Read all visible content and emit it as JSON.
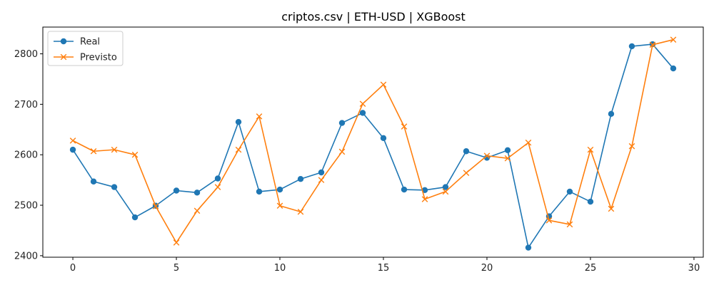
{
  "chart_data": {
    "type": "line",
    "title": "criptos.csv | ETH-USD | XGBoost",
    "xlabel": "",
    "ylabel": "",
    "xlim": [
      -1.45,
      30.45
    ],
    "ylim": [
      2397,
      2853
    ],
    "xticks": [
      0,
      5,
      10,
      15,
      20,
      25,
      30
    ],
    "yticks": [
      2400,
      2500,
      2600,
      2700,
      2800
    ],
    "grid": false,
    "legend_position": "top-left",
    "x": [
      0,
      1,
      2,
      3,
      4,
      5,
      6,
      7,
      8,
      9,
      10,
      11,
      12,
      13,
      14,
      15,
      16,
      17,
      18,
      19,
      20,
      21,
      22,
      23,
      24,
      25,
      26,
      27,
      28,
      29
    ],
    "series": [
      {
        "name": "Real",
        "color": "#1f77b4",
        "marker": "circle",
        "values": [
          2610,
          2547,
          2536,
          2476,
          2499,
          2529,
          2525,
          2553,
          2665,
          2527,
          2531,
          2552,
          2565,
          2663,
          2683,
          2633,
          2531,
          2530,
          2536,
          2607,
          2594,
          2609,
          2416,
          2478,
          2527,
          2507,
          2681,
          2815,
          2819,
          2771
        ]
      },
      {
        "name": "Previsto",
        "color": "#ff7f0e",
        "marker": "x",
        "values": [
          2628,
          2607,
          2610,
          2600,
          2498,
          2426,
          2489,
          2536,
          2610,
          2676,
          2499,
          2487,
          2550,
          2606,
          2701,
          2739,
          2656,
          2512,
          2527,
          2564,
          2598,
          2593,
          2624,
          2470,
          2462,
          2610,
          2493,
          2617,
          2818,
          2828
        ]
      }
    ]
  }
}
